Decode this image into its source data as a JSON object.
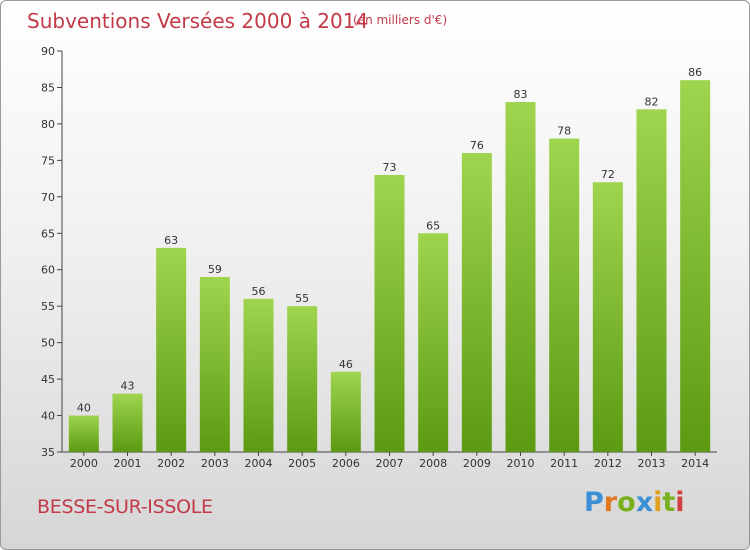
{
  "header": {
    "title": "Subventions Versées 2000 à 2014",
    "subtitle": "(en milliers d'€)"
  },
  "footer": {
    "location": "BESSE-SUR-ISSOLE",
    "logo_text": "Proxiti"
  },
  "colors": {
    "title": "#c23a48",
    "bar_top": "#9fd44e",
    "bar_bottom": "#5c9a14",
    "logo_letters": [
      "#3a8fd6",
      "#e07820",
      "#7ab020",
      "#3a8fd6",
      "#e0a020",
      "#7ab020",
      "#d04040"
    ]
  },
  "chart_data": {
    "type": "bar",
    "title": "Subventions Versées 2000 à 2014",
    "subtitle": "(en milliers d'€)",
    "xlabel": "",
    "ylabel": "",
    "categories": [
      "2000",
      "2001",
      "2002",
      "2003",
      "2004",
      "2005",
      "2006",
      "2007",
      "2008",
      "2009",
      "2010",
      "2011",
      "2012",
      "2013",
      "2014"
    ],
    "values": [
      40,
      43,
      63,
      59,
      56,
      55,
      46,
      73,
      65,
      76,
      83,
      78,
      72,
      82,
      86
    ],
    "ylim": [
      35,
      90
    ],
    "yticks": [
      35,
      40,
      45,
      50,
      55,
      60,
      65,
      70,
      75,
      80,
      85,
      90
    ],
    "grid": false,
    "data_labels": true
  }
}
